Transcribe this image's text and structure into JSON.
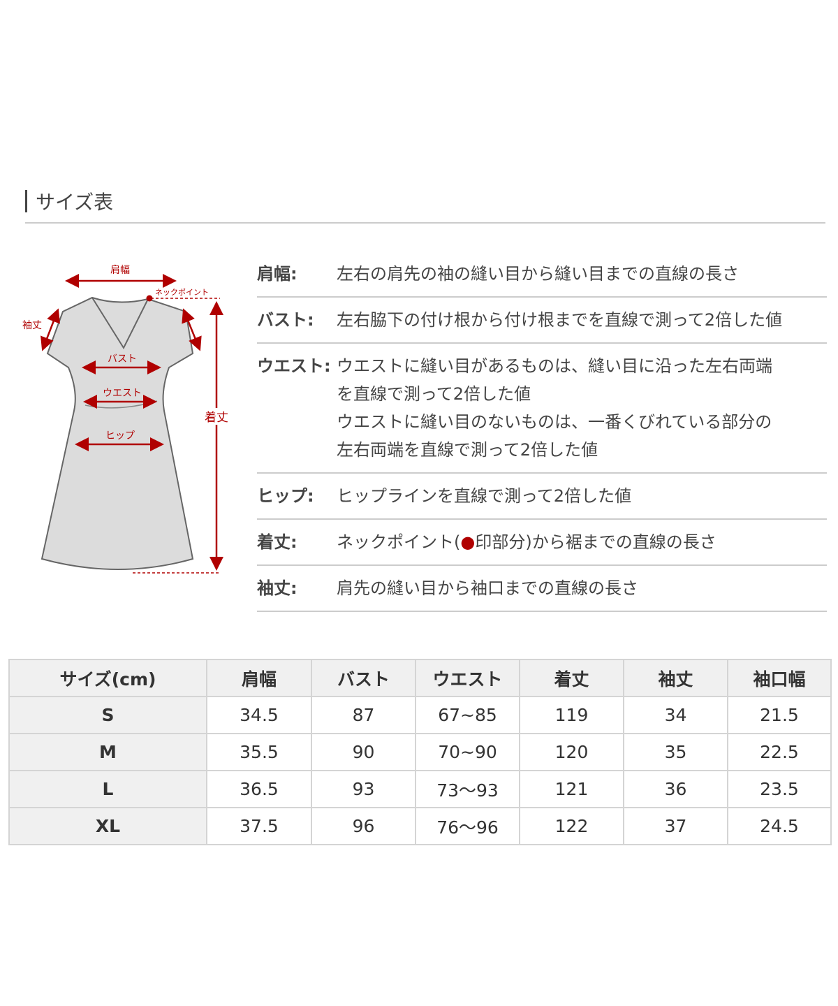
{
  "title": "サイズ表",
  "diagram": {
    "labels": {
      "shoulder": "肩幅",
      "neck_point": "ネックポイント",
      "sleeve": "袖丈",
      "bust": "バスト",
      "waist": "ウエスト",
      "hip": "ヒップ",
      "length": "着丈"
    },
    "accent_color": "#b00000",
    "garment_color": "#dcdcdc"
  },
  "definitions": [
    {
      "term": "肩幅:",
      "lines": [
        "左右の肩先の袖の縫い目から縫い目までの直線の長さ"
      ]
    },
    {
      "term": "バスト:",
      "lines": [
        "左右脇下の付け根から付け根までを直線で測って2倍した値"
      ]
    },
    {
      "term": "ウエスト:",
      "lines": [
        "ウエストに縫い目があるものは、縫い目に沿った左右両端",
        "を直線で測って2倍した値",
        "ウエストに縫い目のないものは、一番くびれている部分の",
        "左右両端を直線で測って2倍した値"
      ]
    },
    {
      "term": "ヒップ:",
      "lines": [
        "ヒップラインを直線で測って2倍した値"
      ]
    },
    {
      "term": "着丈:",
      "lines_before": "ネックポイント(",
      "dot": "●",
      "lines_after": "印部分)から裾までの直線の長さ"
    },
    {
      "term": "袖丈:",
      "lines": [
        "肩先の縫い目から袖口までの直線の長さ"
      ]
    }
  ],
  "table": {
    "headers": [
      "サイズ(cm)",
      "肩幅",
      "バスト",
      "ウエスト",
      "着丈",
      "袖丈",
      "袖口幅"
    ],
    "rows": [
      [
        "S",
        "34.5",
        "87",
        "67~85",
        "119",
        "34",
        "21.5"
      ],
      [
        "M",
        "35.5",
        "90",
        "70~90",
        "120",
        "35",
        "22.5"
      ],
      [
        "L",
        "36.5",
        "93",
        "73〜93",
        "121",
        "36",
        "23.5"
      ],
      [
        "XL",
        "37.5",
        "96",
        "76〜96",
        "122",
        "37",
        "24.5"
      ]
    ]
  }
}
